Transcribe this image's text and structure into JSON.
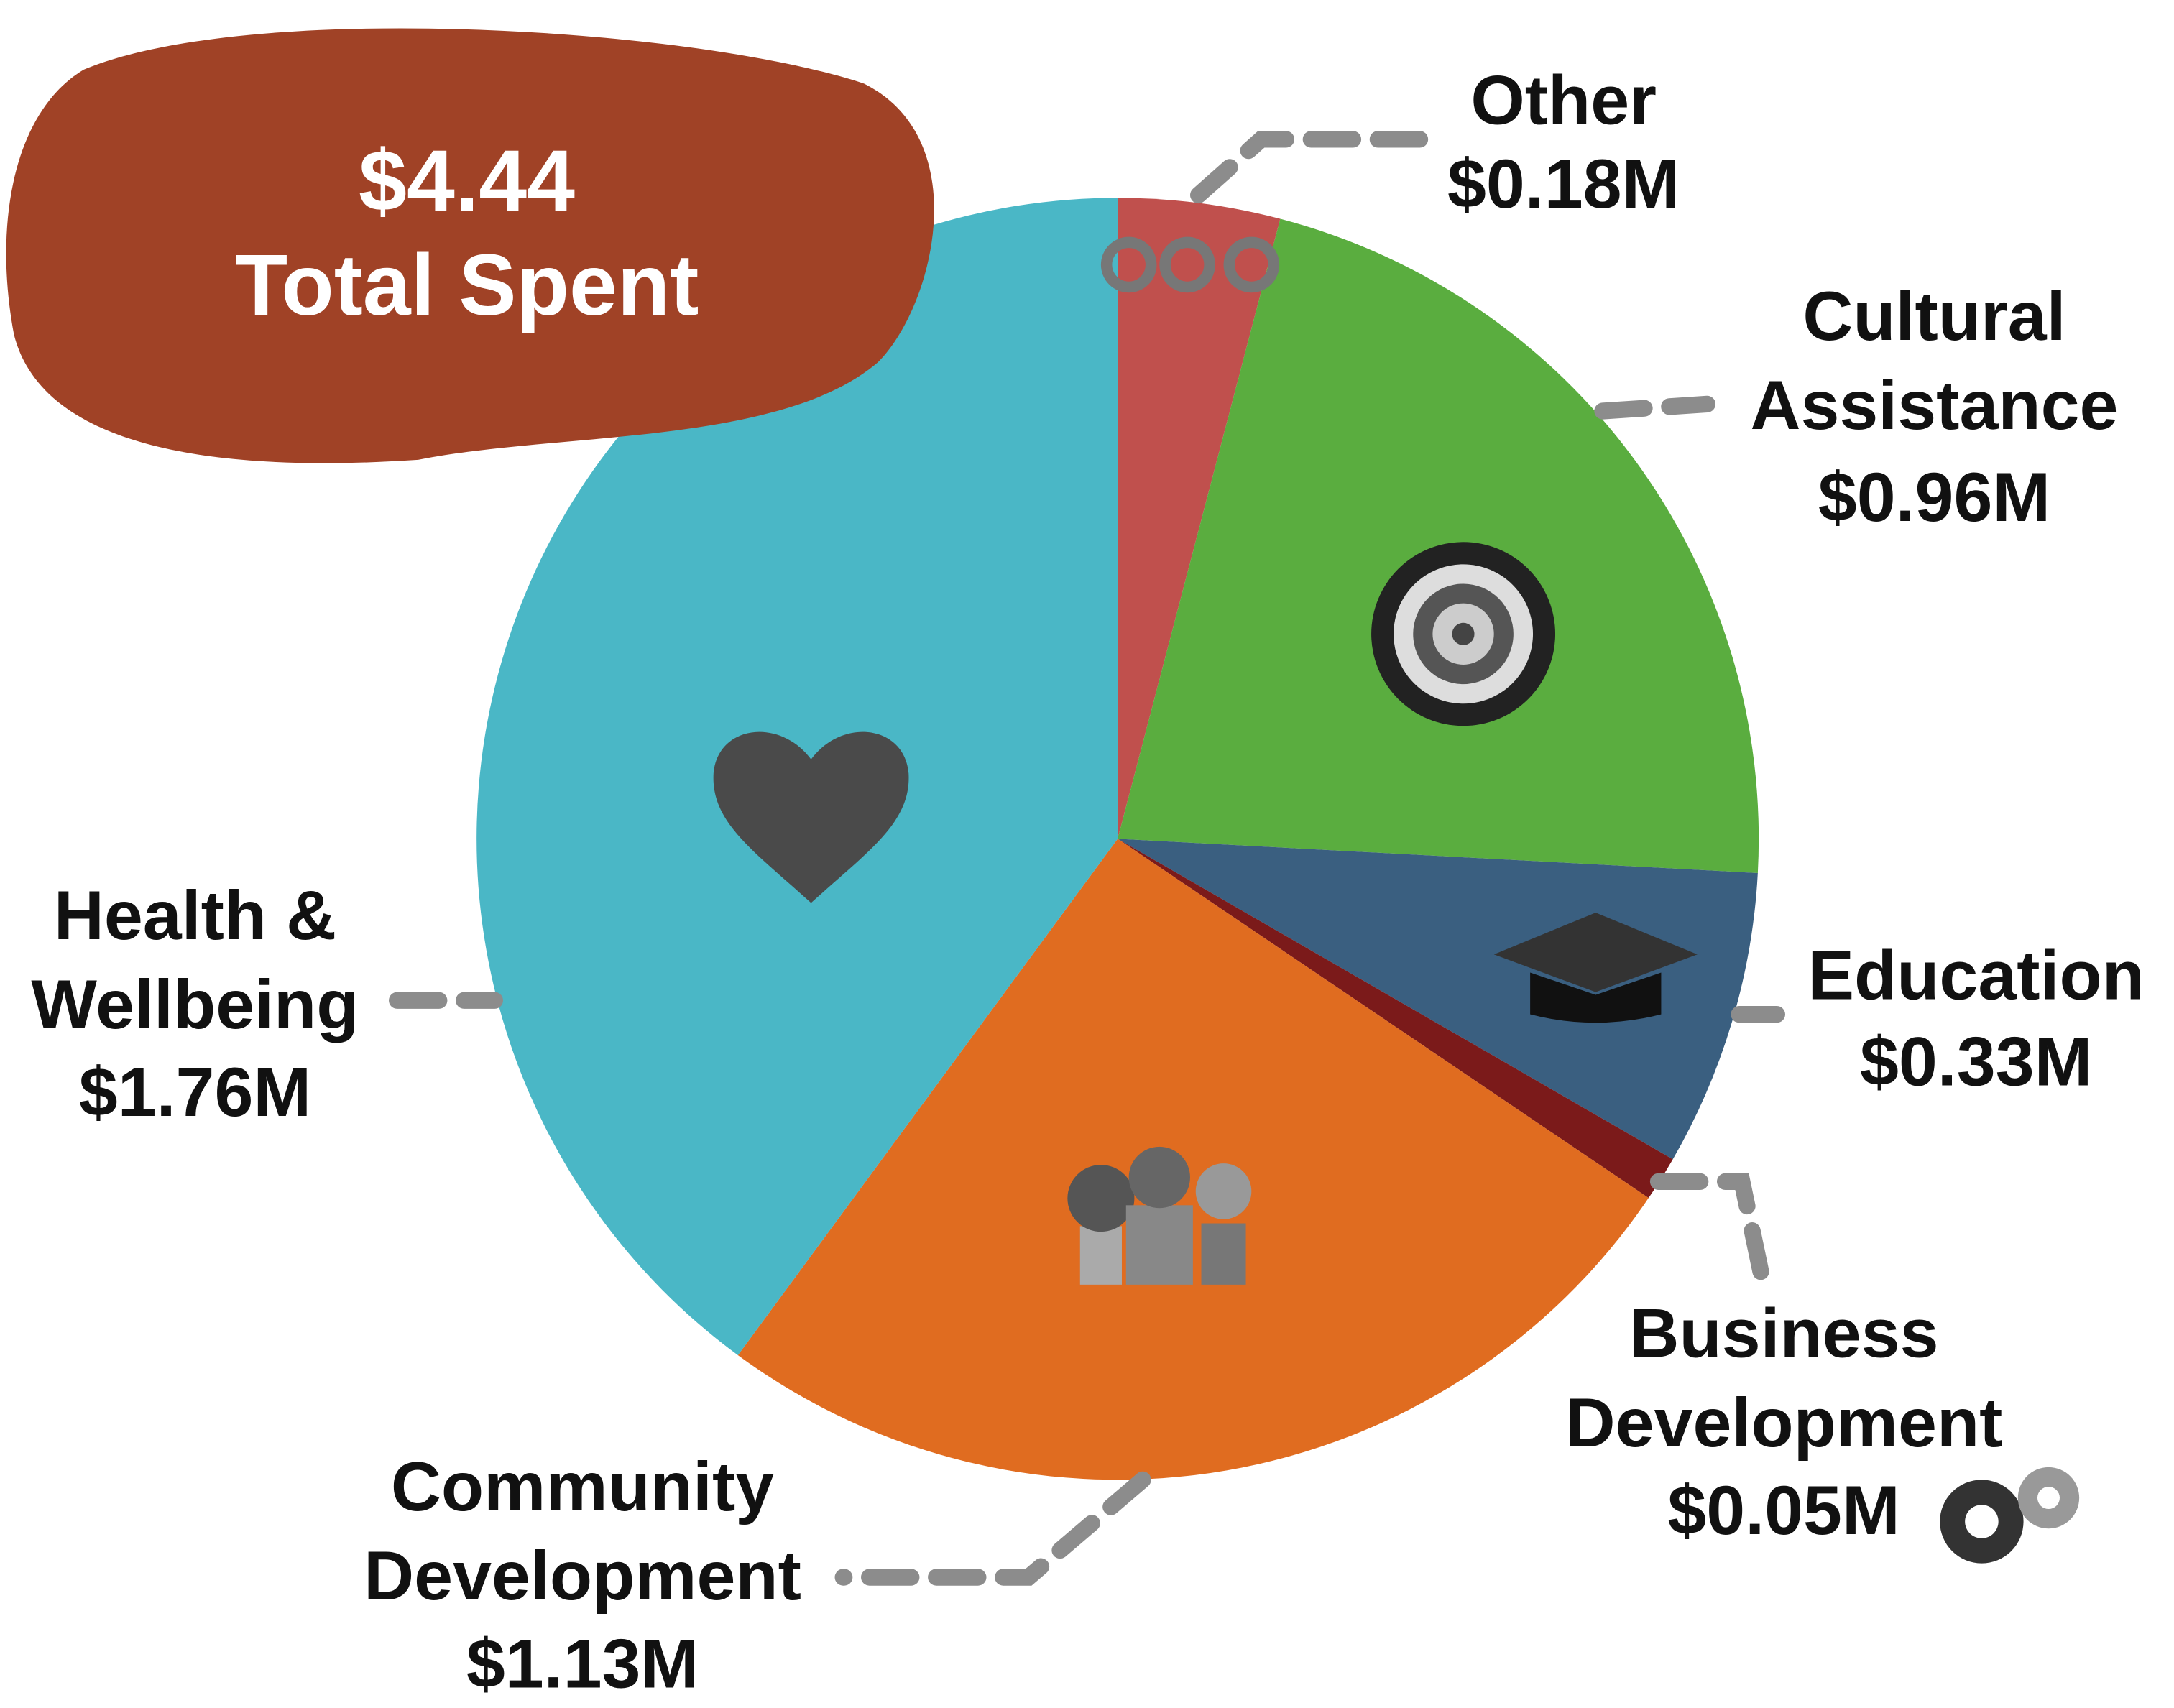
{
  "chart_data": {
    "type": "pie",
    "annotations": [
      {
        "text": "$4.44"
      },
      {
        "text": "Total Spent"
      }
    ],
    "categories": [
      "Other",
      "Cultural Assistance",
      "Education",
      "Business Development",
      "Community Development",
      "Health & Wellbeing"
    ],
    "values": [
      0.18,
      0.96,
      0.33,
      0.05,
      1.13,
      1.76
    ],
    "value_labels": [
      "$0.18M",
      "$0.96M",
      "$0.33M",
      "$0.05M",
      "$1.13M",
      "$1.76M"
    ],
    "colors": [
      "#c0504d",
      "#5aad3f",
      "#3a5f80",
      "#7b1a1a",
      "#e06c20",
      "#4ab7c6"
    ]
  }
}
